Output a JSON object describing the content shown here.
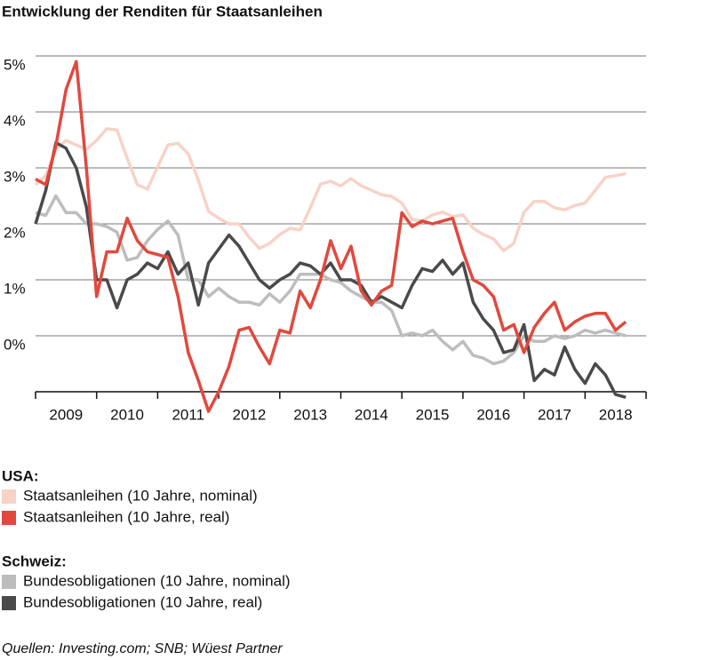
{
  "chart_data": {
    "type": "line",
    "title": "Entwicklung der Renditen für Staatsanleihen",
    "categories": [
      "2009",
      "2010",
      "2011",
      "2012",
      "2013",
      "2014",
      "2015",
      "2016",
      "2017",
      "2018"
    ],
    "x": [
      2009,
      2009.167,
      2009.333,
      2009.5,
      2009.667,
      2009.833,
      2010,
      2010.167,
      2010.333,
      2010.5,
      2010.667,
      2010.833,
      2011,
      2011.167,
      2011.333,
      2011.5,
      2011.667,
      2011.833,
      2012,
      2012.167,
      2012.333,
      2012.5,
      2012.667,
      2012.833,
      2013,
      2013.167,
      2013.333,
      2013.5,
      2013.667,
      2013.833,
      2014,
      2014.167,
      2014.333,
      2014.5,
      2014.667,
      2014.833,
      2015,
      2015.167,
      2015.333,
      2015.5,
      2015.667,
      2015.833,
      2016,
      2016.167,
      2016.333,
      2016.5,
      2016.667,
      2016.833,
      2017,
      2017.167,
      2017.333,
      2017.5,
      2017.667,
      2017.833,
      2018,
      2018.167,
      2018.333,
      2018.5,
      2018.667
    ],
    "xlim": [
      2009,
      2019
    ],
    "ylim": [
      -1,
      5.6
    ],
    "yticks": [
      {
        "value": 0,
        "label": "0%"
      },
      {
        "value": 1,
        "label": "1%"
      },
      {
        "value": 2,
        "label": "2%"
      },
      {
        "value": 3,
        "label": "3%"
      },
      {
        "value": 4,
        "label": "4%"
      },
      {
        "value": 5,
        "label": "5%"
      }
    ],
    "grid": true,
    "legend_titles": [
      "USA:",
      "Schweiz:"
    ],
    "source": "Quellen: Investing.com; SNB; Wüest Partner",
    "series": [
      {
        "name": "Staatsanleihen (10 Jahre, nominal)",
        "color": "#f7d2c6",
        "values": [
          2.7,
          2.86,
          3.33,
          3.49,
          3.41,
          3.33,
          3.49,
          3.7,
          3.68,
          3.17,
          2.7,
          2.62,
          3.02,
          3.41,
          3.44,
          3.25,
          2.78,
          2.22,
          2.1,
          2.0,
          2.0,
          1.76,
          1.56,
          1.65,
          1.81,
          1.92,
          1.89,
          2.29,
          2.71,
          2.76,
          2.68,
          2.81,
          2.68,
          2.6,
          2.52,
          2.49,
          2.37,
          2.08,
          2.05,
          2.16,
          2.21,
          2.13,
          2.16,
          1.92,
          1.81,
          1.73,
          1.52,
          1.65,
          2.21,
          2.4,
          2.4,
          2.29,
          2.25,
          2.33,
          2.37,
          2.6,
          2.83,
          2.86,
          2.9
        ]
      },
      {
        "name": "Staatsanleihen (10 Jahre, real)",
        "color": "#e2483d",
        "values": [
          2.8,
          2.7,
          3.4,
          4.4,
          4.9,
          3.0,
          0.7,
          1.5,
          1.5,
          2.1,
          1.7,
          1.5,
          1.45,
          1.4,
          0.7,
          -0.3,
          -0.8,
          -1.35,
          -1.0,
          -0.55,
          0.1,
          0.15,
          -0.2,
          -0.5,
          0.1,
          0.05,
          0.8,
          0.5,
          1.0,
          1.7,
          1.2,
          1.6,
          0.8,
          0.55,
          0.8,
          0.9,
          2.2,
          1.95,
          2.05,
          2.0,
          2.05,
          2.1,
          1.5,
          1.0,
          0.9,
          0.7,
          0.1,
          0.2,
          -0.3,
          0.15,
          0.4,
          0.6,
          0.1,
          0.25,
          0.35,
          0.4,
          0.4,
          0.1,
          0.25
        ]
      },
      {
        "name": "Bundesobligationen (10 Jahre, nominal)",
        "color": "#bdbdbd",
        "values": [
          2.2,
          2.15,
          2.5,
          2.2,
          2.2,
          2.0,
          2.0,
          1.95,
          1.85,
          1.35,
          1.4,
          1.7,
          1.9,
          2.05,
          1.8,
          1.0,
          1.0,
          0.7,
          0.85,
          0.7,
          0.6,
          0.6,
          0.55,
          0.75,
          0.6,
          0.8,
          1.1,
          1.1,
          1.1,
          1.0,
          0.95,
          0.8,
          0.7,
          0.6,
          0.6,
          0.45,
          0.0,
          0.05,
          0.0,
          0.1,
          -0.1,
          -0.25,
          -0.1,
          -0.35,
          -0.4,
          -0.5,
          -0.45,
          -0.3,
          0.0,
          -0.1,
          -0.1,
          0.0,
          -0.05,
          0.0,
          0.1,
          0.05,
          0.1,
          0.05,
          0.0
        ]
      },
      {
        "name": "Bundesobligationen (10 Jahre, real)",
        "color": "#4a4a4a",
        "values": [
          2.0,
          2.6,
          3.45,
          3.35,
          3.0,
          2.3,
          1.0,
          1.0,
          0.5,
          1.0,
          1.1,
          1.3,
          1.2,
          1.5,
          1.1,
          1.3,
          0.55,
          1.3,
          1.55,
          1.8,
          1.6,
          1.3,
          1.0,
          0.85,
          1.0,
          1.1,
          1.3,
          1.25,
          1.1,
          1.3,
          1.0,
          1.0,
          0.9,
          0.6,
          0.7,
          0.6,
          0.5,
          0.9,
          1.2,
          1.15,
          1.35,
          1.1,
          1.3,
          0.6,
          0.3,
          0.1,
          -0.3,
          -0.25,
          0.2,
          -0.8,
          -0.6,
          -0.7,
          -0.2,
          -0.6,
          -0.85,
          -0.5,
          -0.7,
          -1.05,
          -1.1
        ]
      }
    ]
  }
}
